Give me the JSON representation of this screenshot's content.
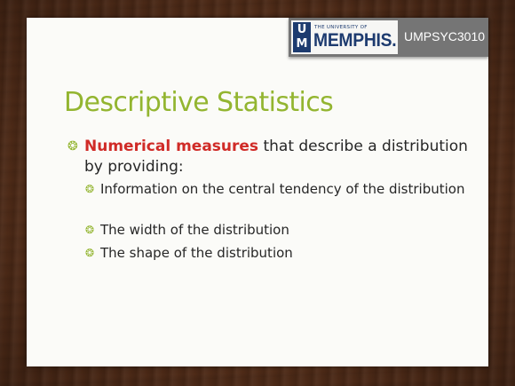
{
  "header": {
    "logo_letter_top": "U",
    "logo_letter_bottom": "M",
    "university_small": "THE UNIVERSITY OF",
    "university_big": "MEMPHIS.",
    "course_code": "UMPSYC3010"
  },
  "slide": {
    "title": "Descriptive Statistics",
    "bullet_marker": "❂",
    "main_bullet": {
      "emphasis": "Numerical measures",
      "rest": " that describe a distribution by providing:"
    },
    "sub_bullets": [
      "Information on the central tendency of the distribution",
      "The width of the distribution",
      "The shape of the distribution"
    ]
  },
  "colors": {
    "title": "#93b530",
    "emphasis": "#d02b27",
    "logo_blue": "#1d3b6f",
    "header_bar": "#757575",
    "wood": "#4d2a17"
  }
}
